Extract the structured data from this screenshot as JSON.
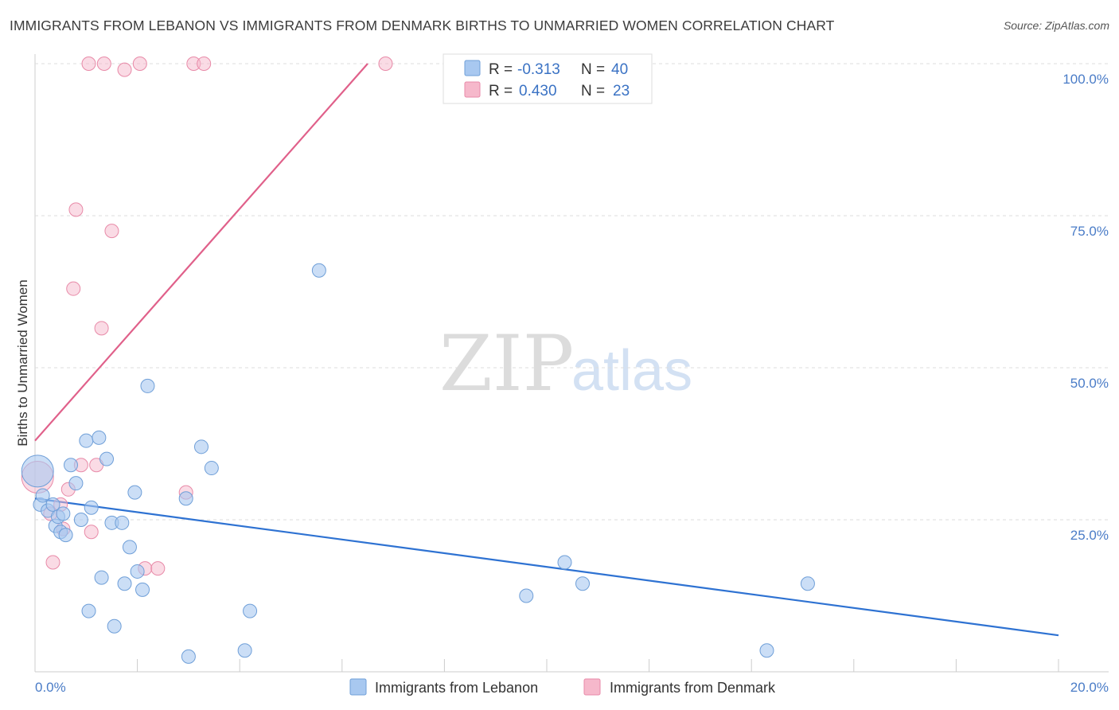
{
  "header": {
    "title": "IMMIGRANTS FROM LEBANON VS IMMIGRANTS FROM DENMARK BIRTHS TO UNMARRIED WOMEN CORRELATION CHART",
    "source": "Source: ZipAtlas.com"
  },
  "watermark": {
    "zip": "ZIP",
    "atlas": "atlas"
  },
  "legend_box": {
    "rows": [
      {
        "r_label": "R =",
        "r_value": "-0.313",
        "n_label": "N =",
        "n_value": "40",
        "color": "#a8c8f0"
      },
      {
        "r_label": "R =",
        "r_value": "0.430",
        "n_label": "N =",
        "n_value": "23",
        "color": "#f6b8cb"
      }
    ]
  },
  "chart_data": {
    "type": "scatter",
    "title": "IMMIGRANTS FROM LEBANON VS IMMIGRANTS FROM DENMARK BIRTHS TO UNMARRIED WOMEN CORRELATION CHART",
    "xlabel": "",
    "ylabel": "Births to Unmarried Women",
    "xlim": [
      0,
      20
    ],
    "ylim": [
      0,
      100
    ],
    "x_tick_labels": [
      "0.0%",
      "20.0%"
    ],
    "y_tick_labels": [
      "25.0%",
      "50.0%",
      "75.0%",
      "100.0%"
    ],
    "y_ticks": [
      25,
      50,
      75,
      100
    ],
    "legend_position": "bottom",
    "series": [
      {
        "name": "Immigrants from Lebanon",
        "color": "#a8c8f0",
        "stroke": "#6f9fd8",
        "trend_color": "#2e72d2",
        "trend": {
          "x": [
            0,
            20
          ],
          "y": [
            28.5,
            6.0
          ]
        },
        "points": [
          {
            "x": 0.05,
            "y": 33.0,
            "big": true
          },
          {
            "x": 0.1,
            "y": 27.5
          },
          {
            "x": 0.15,
            "y": 29.0
          },
          {
            "x": 0.25,
            "y": 26.5
          },
          {
            "x": 0.35,
            "y": 27.5
          },
          {
            "x": 0.4,
            "y": 24.0
          },
          {
            "x": 0.45,
            "y": 25.5
          },
          {
            "x": 0.5,
            "y": 23.0
          },
          {
            "x": 0.55,
            "y": 26.0
          },
          {
            "x": 0.6,
            "y": 22.5
          },
          {
            "x": 0.7,
            "y": 34.0
          },
          {
            "x": 0.8,
            "y": 31.0
          },
          {
            "x": 0.9,
            "y": 25.0
          },
          {
            "x": 1.0,
            "y": 38.0
          },
          {
            "x": 1.05,
            "y": 10.0
          },
          {
            "x": 1.1,
            "y": 27.0
          },
          {
            "x": 1.25,
            "y": 38.5
          },
          {
            "x": 1.3,
            "y": 15.5
          },
          {
            "x": 1.4,
            "y": 35.0
          },
          {
            "x": 1.5,
            "y": 24.5
          },
          {
            "x": 1.55,
            "y": 7.5
          },
          {
            "x": 1.7,
            "y": 24.5
          },
          {
            "x": 1.75,
            "y": 14.5
          },
          {
            "x": 1.85,
            "y": 20.5
          },
          {
            "x": 1.95,
            "y": 29.5
          },
          {
            "x": 2.0,
            "y": 16.5
          },
          {
            "x": 2.1,
            "y": 13.5
          },
          {
            "x": 2.2,
            "y": 47.0
          },
          {
            "x": 2.95,
            "y": 28.5
          },
          {
            "x": 3.0,
            "y": 2.5
          },
          {
            "x": 3.25,
            "y": 37.0
          },
          {
            "x": 3.45,
            "y": 33.5
          },
          {
            "x": 4.1,
            "y": 3.5
          },
          {
            "x": 4.2,
            "y": 10.0
          },
          {
            "x": 5.55,
            "y": 66.0
          },
          {
            "x": 9.6,
            "y": 12.5
          },
          {
            "x": 10.35,
            "y": 18.0
          },
          {
            "x": 10.7,
            "y": 14.5
          },
          {
            "x": 14.3,
            "y": 3.5
          },
          {
            "x": 15.1,
            "y": 14.5
          }
        ]
      },
      {
        "name": "Immigrants from Denmark",
        "color": "#f6b8cb",
        "stroke": "#e88aa8",
        "trend_color": "#e0608a",
        "trend": {
          "x": [
            0,
            6.5
          ],
          "y": [
            38.0,
            100
          ]
        },
        "points": [
          {
            "x": 0.05,
            "y": 32.0,
            "big": true
          },
          {
            "x": 0.3,
            "y": 26.0
          },
          {
            "x": 0.35,
            "y": 18.0
          },
          {
            "x": 0.5,
            "y": 27.5
          },
          {
            "x": 0.55,
            "y": 23.5
          },
          {
            "x": 0.65,
            "y": 30.0
          },
          {
            "x": 0.75,
            "y": 63.0
          },
          {
            "x": 0.8,
            "y": 76.0
          },
          {
            "x": 0.9,
            "y": 34.0
          },
          {
            "x": 1.05,
            "y": 103.0
          },
          {
            "x": 1.1,
            "y": 23.0
          },
          {
            "x": 1.2,
            "y": 34.0
          },
          {
            "x": 1.3,
            "y": 56.5
          },
          {
            "x": 1.35,
            "y": 103.0
          },
          {
            "x": 1.5,
            "y": 72.5
          },
          {
            "x": 1.75,
            "y": 99.0
          },
          {
            "x": 2.05,
            "y": 103.0
          },
          {
            "x": 2.15,
            "y": 17.0
          },
          {
            "x": 2.4,
            "y": 17.0
          },
          {
            "x": 2.95,
            "y": 29.5
          },
          {
            "x": 3.1,
            "y": 103.0
          },
          {
            "x": 6.85,
            "y": 103.0
          },
          {
            "x": 3.3,
            "y": 103.0
          }
        ]
      }
    ]
  }
}
